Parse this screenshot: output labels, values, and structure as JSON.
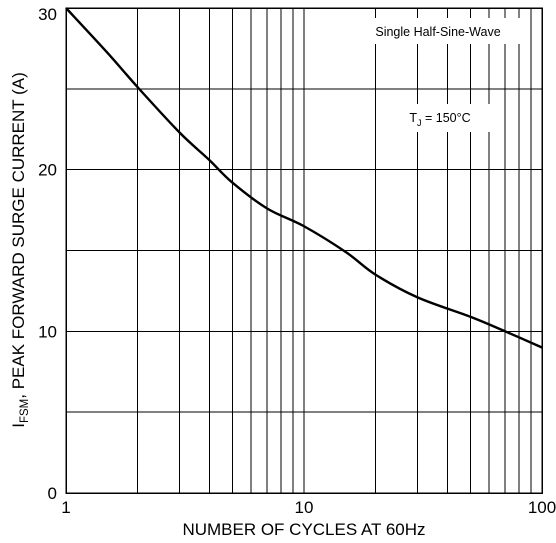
{
  "chart_data": {
    "type": "line",
    "xscale": "log",
    "xlim": [
      1,
      100
    ],
    "ylim": [
      0,
      30
    ],
    "grid": true,
    "xlabel": "NUMBER OF CYCLES AT 60Hz",
    "ylabel": {
      "prefix": "I",
      "subscript": "FSM",
      "suffix": ", PEAK FORWARD SURGE CURRENT (A)"
    },
    "x_ticks": [
      {
        "value": 1,
        "label": "1"
      },
      {
        "value": 10,
        "label": "10"
      },
      {
        "value": 100,
        "label": "100"
      }
    ],
    "y_ticks": [
      {
        "value": 0,
        "label": "0"
      },
      {
        "value": 10,
        "label": "10"
      },
      {
        "value": 20,
        "label": "20"
      },
      {
        "value": 30,
        "label": "30"
      }
    ],
    "y_minor_grid": [
      5,
      15,
      25
    ],
    "annotations": {
      "waveform": "Single Half-Sine-Wave",
      "temperature": {
        "prefix": "T",
        "subscript": "J",
        "suffix": " = 150°C"
      }
    },
    "series": [
      {
        "x": [
          1,
          1.5,
          2,
          3,
          4,
          5,
          7,
          10,
          15,
          20,
          30,
          50,
          70,
          100
        ],
        "y": [
          30.0,
          27.2,
          25.1,
          22.3,
          20.6,
          19.2,
          17.6,
          16.5,
          14.9,
          13.5,
          12.1,
          10.9,
          10.0,
          9.0
        ]
      }
    ]
  }
}
